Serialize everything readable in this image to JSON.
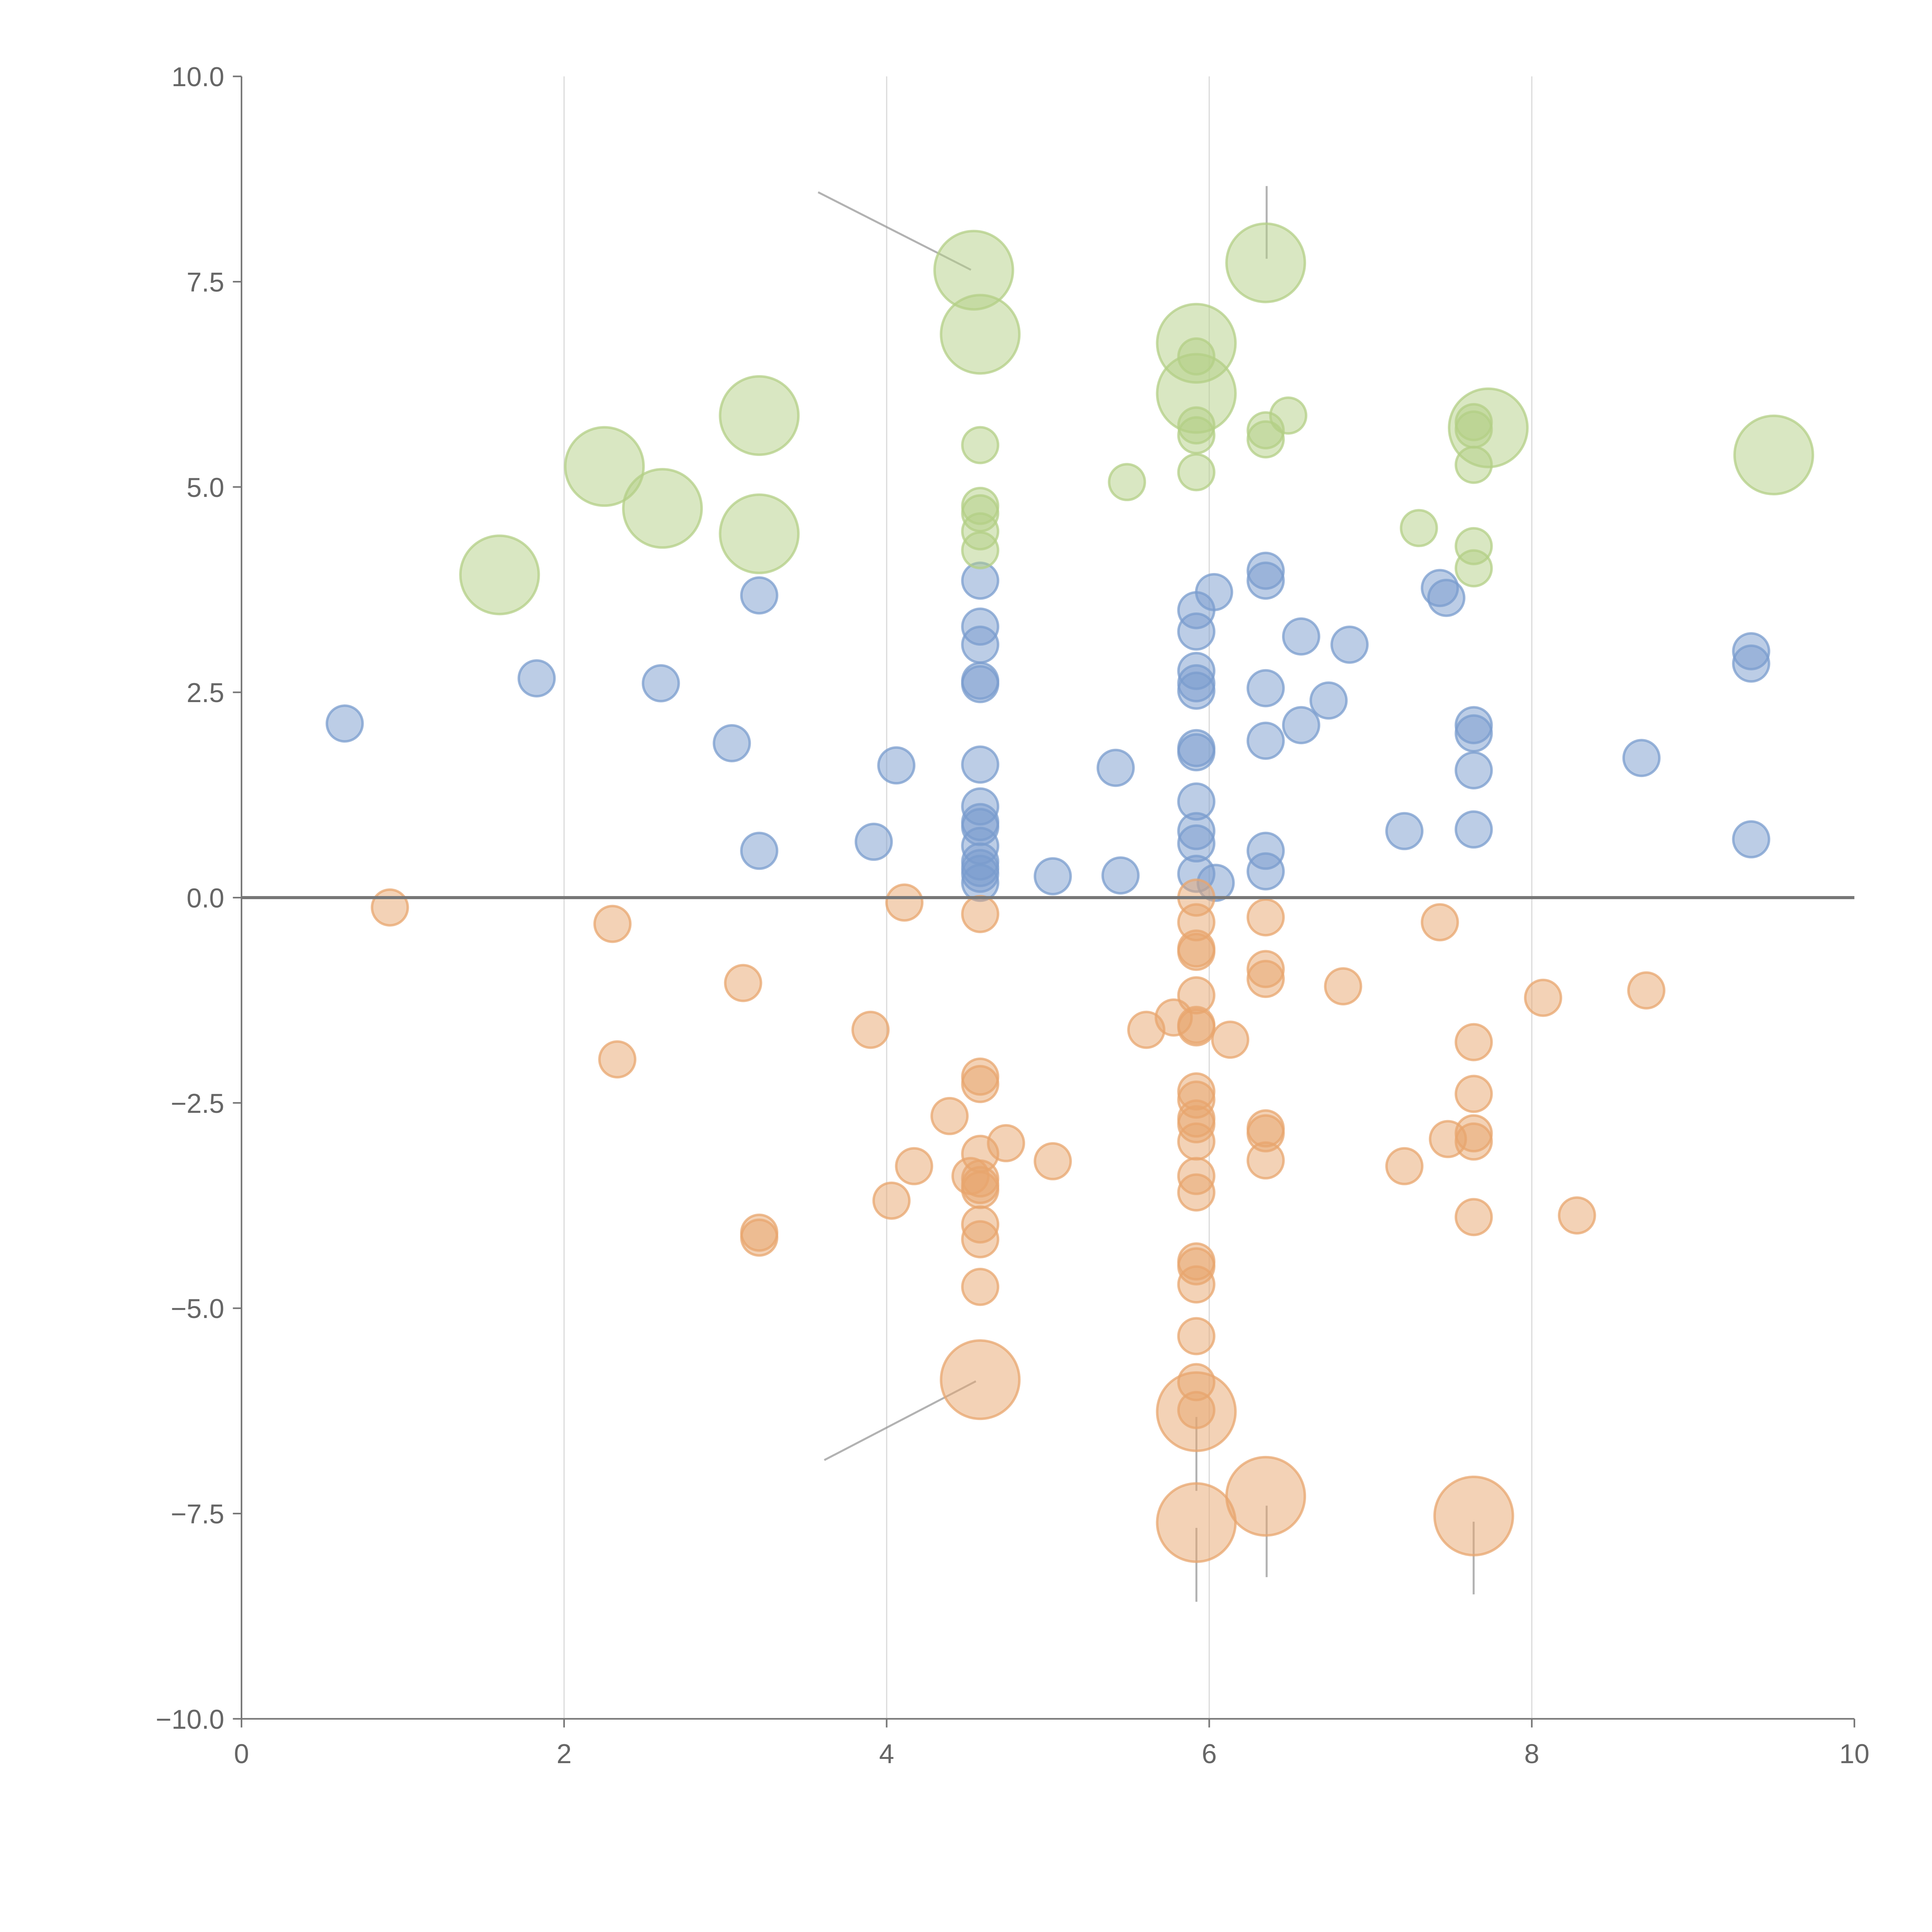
{
  "chart_data": {
    "type": "scatter",
    "title": "",
    "xlabel": "",
    "ylabel": "",
    "xlim": [
      0,
      10
    ],
    "ylim": [
      -10,
      10
    ],
    "grid": "vertical lines at x ticks",
    "legend": "none",
    "x_ticks": [
      "0",
      "2",
      "4",
      "6",
      "8",
      "10"
    ],
    "x_tick_values": [
      0,
      2,
      4,
      6,
      8,
      10
    ],
    "y_ticks": [
      "10.0",
      "7.5",
      "5.0",
      "2.5",
      "0.0",
      "−2.5",
      "−5.0",
      "−7.5",
      "−10.0"
    ],
    "y_tick_values": [
      10,
      7.5,
      5,
      2.5,
      0,
      -2.5,
      -5,
      -7.5,
      -10
    ],
    "reference_line_y": 0,
    "series": [
      {
        "name": "blue",
        "color": "#7a9ccd",
        "points": [
          [
            0.64,
            2.12,
            1
          ],
          [
            1.83,
            2.67,
            1
          ],
          [
            2.6,
            2.61,
            1
          ],
          [
            3.04,
            1.88,
            1
          ],
          [
            3.21,
            3.68,
            1
          ],
          [
            3.21,
            0.57,
            1
          ],
          [
            3.92,
            0.68,
            1
          ],
          [
            4.06,
            1.61,
            1
          ],
          [
            4.58,
            3.86,
            1
          ],
          [
            4.58,
            3.3,
            1
          ],
          [
            4.58,
            3.08,
            1
          ],
          [
            4.58,
            2.64,
            1
          ],
          [
            4.58,
            2.6,
            1
          ],
          [
            4.58,
            1.62,
            1
          ],
          [
            4.58,
            1.11,
            1
          ],
          [
            4.58,
            0.92,
            1
          ],
          [
            4.58,
            0.86,
            1
          ],
          [
            4.58,
            0.63,
            1
          ],
          [
            4.58,
            0.44,
            1
          ],
          [
            4.58,
            0.36,
            1
          ],
          [
            4.58,
            0.29,
            1
          ],
          [
            4.58,
            0.18,
            1
          ],
          [
            5.03,
            0.26,
            1
          ],
          [
            5.42,
            1.58,
            1
          ],
          [
            5.45,
            0.27,
            1
          ],
          [
            5.92,
            3.5,
            1
          ],
          [
            5.92,
            3.24,
            1
          ],
          [
            5.92,
            2.76,
            1
          ],
          [
            5.92,
            2.61,
            1
          ],
          [
            5.92,
            2.52,
            1
          ],
          [
            5.92,
            1.82,
            1
          ],
          [
            5.92,
            1.77,
            1
          ],
          [
            5.92,
            1.17,
            1
          ],
          [
            5.92,
            0.81,
            1
          ],
          [
            5.92,
            0.66,
            1
          ],
          [
            5.92,
            0.29,
            1
          ],
          [
            6.03,
            3.72,
            1
          ],
          [
            6.04,
            0.18,
            1
          ],
          [
            6.35,
            3.98,
            1
          ],
          [
            6.35,
            3.86,
            1
          ],
          [
            6.35,
            2.55,
            1
          ],
          [
            6.35,
            1.91,
            1
          ],
          [
            6.35,
            0.57,
            1
          ],
          [
            6.35,
            0.32,
            1
          ],
          [
            6.57,
            3.18,
            1
          ],
          [
            6.57,
            2.1,
            1
          ],
          [
            6.74,
            2.4,
            1
          ],
          [
            6.87,
            3.08,
            1
          ],
          [
            7.21,
            0.81,
            1
          ],
          [
            7.43,
            3.77,
            1
          ],
          [
            7.47,
            3.65,
            1
          ],
          [
            7.64,
            2.1,
            1
          ],
          [
            7.64,
            2.0,
            1
          ],
          [
            7.64,
            1.55,
            1
          ],
          [
            7.64,
            0.83,
            1
          ],
          [
            8.68,
            1.7,
            1
          ],
          [
            9.36,
            3.0,
            1
          ],
          [
            9.36,
            2.85,
            1
          ],
          [
            9.36,
            0.71,
            1
          ]
        ]
      },
      {
        "name": "green",
        "color": "#b3cf85",
        "points": [
          [
            1.6,
            3.93,
            5
          ],
          [
            2.25,
            5.25,
            5
          ],
          [
            2.61,
            4.74,
            5
          ],
          [
            3.21,
            5.87,
            5
          ],
          [
            3.21,
            4.43,
            5
          ],
          [
            4.54,
            7.64,
            5
          ],
          [
            4.58,
            6.86,
            5
          ],
          [
            4.58,
            5.51,
            1
          ],
          [
            4.58,
            4.77,
            1
          ],
          [
            4.58,
            4.68,
            1
          ],
          [
            4.58,
            4.46,
            1
          ],
          [
            4.58,
            4.23,
            1
          ],
          [
            5.49,
            5.06,
            1
          ],
          [
            5.92,
            6.75,
            5
          ],
          [
            5.92,
            6.14,
            5
          ],
          [
            5.92,
            6.59,
            1
          ],
          [
            5.92,
            5.75,
            1
          ],
          [
            5.92,
            5.63,
            1
          ],
          [
            5.92,
            5.18,
            1
          ],
          [
            6.35,
            7.73,
            5
          ],
          [
            6.35,
            5.69,
            1
          ],
          [
            6.35,
            5.58,
            1
          ],
          [
            6.49,
            5.87,
            1
          ],
          [
            7.3,
            4.5,
            1
          ],
          [
            7.73,
            5.72,
            5
          ],
          [
            7.64,
            5.79,
            1
          ],
          [
            7.64,
            5.7,
            1
          ],
          [
            7.64,
            5.27,
            1
          ],
          [
            7.64,
            4.28,
            1
          ],
          [
            7.64,
            4.01,
            1
          ],
          [
            9.5,
            5.39,
            5
          ]
        ]
      },
      {
        "name": "orange",
        "color": "#e8a56d",
        "points": [
          [
            0.92,
            -0.12,
            1
          ],
          [
            2.3,
            -0.32,
            1
          ],
          [
            2.33,
            -1.97,
            1
          ],
          [
            3.11,
            -1.04,
            1
          ],
          [
            3.21,
            -4.08,
            1
          ],
          [
            3.21,
            -4.14,
            1
          ],
          [
            3.9,
            -1.61,
            1
          ],
          [
            4.03,
            -3.69,
            1
          ],
          [
            4.11,
            -0.06,
            1
          ],
          [
            4.17,
            -3.27,
            1
          ],
          [
            4.39,
            -2.66,
            1
          ],
          [
            4.58,
            -0.2,
            1
          ],
          [
            4.58,
            -2.18,
            1
          ],
          [
            4.58,
            -2.27,
            1
          ],
          [
            4.58,
            -3.12,
            1
          ],
          [
            4.58,
            -3.42,
            1
          ],
          [
            4.58,
            -3.5,
            1
          ],
          [
            4.58,
            -3.56,
            1
          ],
          [
            4.58,
            -3.98,
            1
          ],
          [
            4.58,
            -4.16,
            1
          ],
          [
            4.58,
            -4.74,
            1
          ],
          [
            4.52,
            -3.39,
            1
          ],
          [
            4.58,
            -5.87,
            5
          ],
          [
            4.74,
            -2.99,
            1
          ],
          [
            5.03,
            -3.21,
            1
          ],
          [
            5.61,
            -1.61,
            1
          ],
          [
            5.78,
            -1.46,
            1
          ],
          [
            5.92,
            0.0,
            1
          ],
          [
            5.92,
            -0.3,
            1
          ],
          [
            5.92,
            -0.62,
            1
          ],
          [
            5.92,
            -0.66,
            1
          ],
          [
            5.92,
            -1.19,
            1
          ],
          [
            5.92,
            -1.55,
            1
          ],
          [
            5.92,
            -1.58,
            1
          ],
          [
            5.92,
            -2.36,
            1
          ],
          [
            5.92,
            -2.46,
            1
          ],
          [
            5.92,
            -2.69,
            1
          ],
          [
            5.92,
            -2.76,
            1
          ],
          [
            5.92,
            -2.97,
            1
          ],
          [
            5.92,
            -3.39,
            1
          ],
          [
            5.92,
            -3.59,
            1
          ],
          [
            5.92,
            -4.43,
            1
          ],
          [
            5.92,
            -4.49,
            1
          ],
          [
            5.92,
            -4.71,
            1
          ],
          [
            5.92,
            -5.34,
            1
          ],
          [
            5.92,
            -5.9,
            1
          ],
          [
            5.92,
            -6.24,
            1
          ],
          [
            5.92,
            -6.26,
            5
          ],
          [
            5.92,
            -7.61,
            5
          ],
          [
            6.13,
            -1.73,
            1
          ],
          [
            6.35,
            -0.24,
            1
          ],
          [
            6.35,
            -0.87,
            1
          ],
          [
            6.35,
            -0.99,
            1
          ],
          [
            6.35,
            -2.81,
            1
          ],
          [
            6.35,
            -2.87,
            1
          ],
          [
            6.35,
            -3.2,
            1
          ],
          [
            6.35,
            -7.29,
            5
          ],
          [
            6.83,
            -1.08,
            1
          ],
          [
            7.21,
            -3.27,
            1
          ],
          [
            7.43,
            -0.3,
            1
          ],
          [
            7.48,
            -2.94,
            1
          ],
          [
            7.64,
            -1.76,
            1
          ],
          [
            7.64,
            -2.39,
            1
          ],
          [
            7.64,
            -2.87,
            1
          ],
          [
            7.64,
            -2.97,
            1
          ],
          [
            7.64,
            -3.89,
            1
          ],
          [
            7.64,
            -7.53,
            5
          ],
          [
            8.07,
            -1.22,
            1
          ],
          [
            8.28,
            -3.87,
            1
          ],
          [
            8.71,
            -1.13,
            1
          ]
        ]
      }
    ]
  }
}
